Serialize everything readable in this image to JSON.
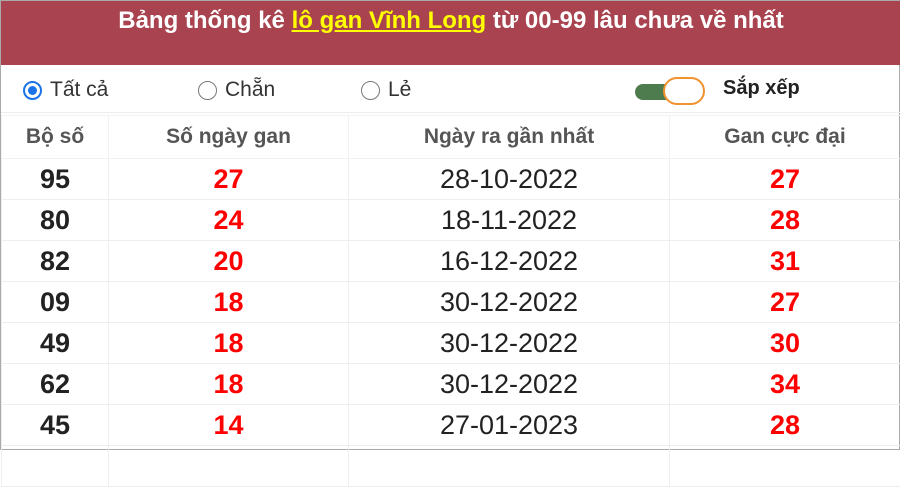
{
  "title": {
    "prefix": "Bảng thống kê ",
    "link": "lô gan Vĩnh Long",
    "suffix": " từ 00-99 lâu chưa về nhất"
  },
  "filters": [
    {
      "label": "Tất cả",
      "checked": true
    },
    {
      "label": "Chẵn",
      "checked": false
    },
    {
      "label": "Lẻ",
      "checked": false
    }
  ],
  "sort": {
    "label": "Sắp xếp",
    "on": true
  },
  "table": {
    "headers": [
      "Bộ số",
      "Số ngày gan",
      "Ngày ra gần nhất",
      "Gan cực đại"
    ],
    "rows": [
      [
        "95",
        "27",
        "28-10-2022",
        "27"
      ],
      [
        "80",
        "24",
        "18-11-2022",
        "28"
      ],
      [
        "82",
        "20",
        "16-12-2022",
        "31"
      ],
      [
        "09",
        "18",
        "30-12-2022",
        "27"
      ],
      [
        "49",
        "18",
        "30-12-2022",
        "30"
      ],
      [
        "62",
        "18",
        "30-12-2022",
        "34"
      ],
      [
        "45",
        "14",
        "27-01-2023",
        "28"
      ]
    ]
  },
  "colors": {
    "header_bg": "#a8434f",
    "link": "#ffff00",
    "value_red": "#ff0000",
    "radio": "#1a73e8"
  }
}
